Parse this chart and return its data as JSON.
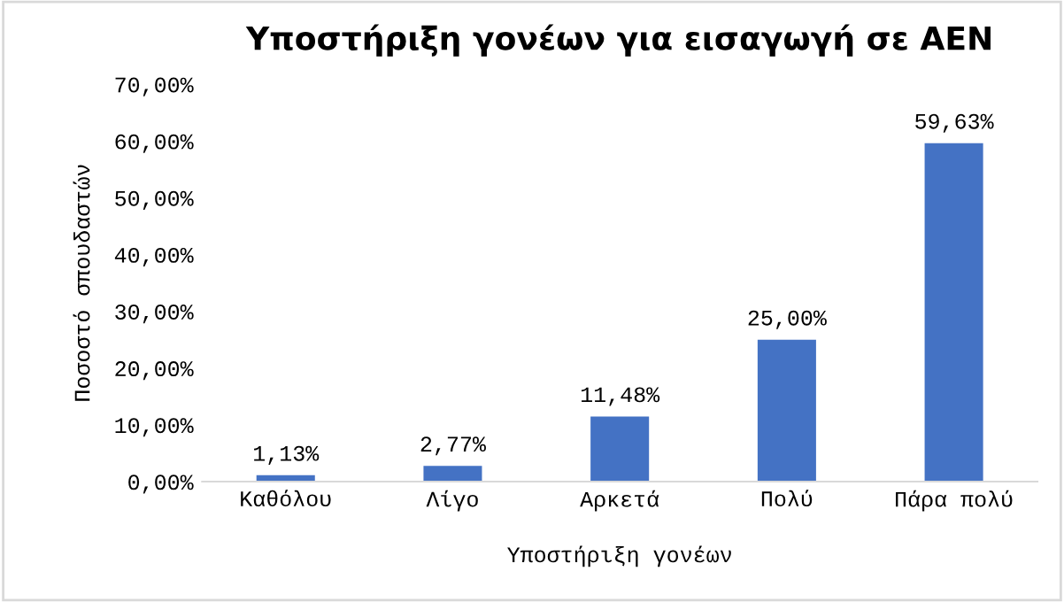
{
  "chart_data": {
    "type": "bar",
    "title": "Υποστήριξη γονέων για εισαγωγή σε ΑΕΝ",
    "xlabel": "Υποστήριξη γονέων",
    "ylabel": "Ποσοστό σπουδαστών",
    "categories": [
      "Καθόλου",
      "Λίγο",
      "Αρκετά",
      "Πολύ",
      "Πάρα πολύ"
    ],
    "values": [
      1.13,
      2.77,
      11.48,
      25.0,
      59.63
    ],
    "value_labels": [
      "1,13%",
      "2,77%",
      "11,48%",
      "25,00%",
      "59,63%"
    ],
    "color": "#4472c4",
    "ylim": [
      0,
      70
    ],
    "yticks": [
      {
        "value": 0,
        "label": "0,00%"
      },
      {
        "value": 10,
        "label": "10,00%"
      },
      {
        "value": 20,
        "label": "20,00%"
      },
      {
        "value": 30,
        "label": "30,00%"
      },
      {
        "value": 40,
        "label": "40,00%"
      },
      {
        "value": 50,
        "label": "50,00%"
      },
      {
        "value": 60,
        "label": "60,00%"
      },
      {
        "value": 70,
        "label": "70,00%"
      }
    ],
    "grid": false,
    "legend": false
  }
}
